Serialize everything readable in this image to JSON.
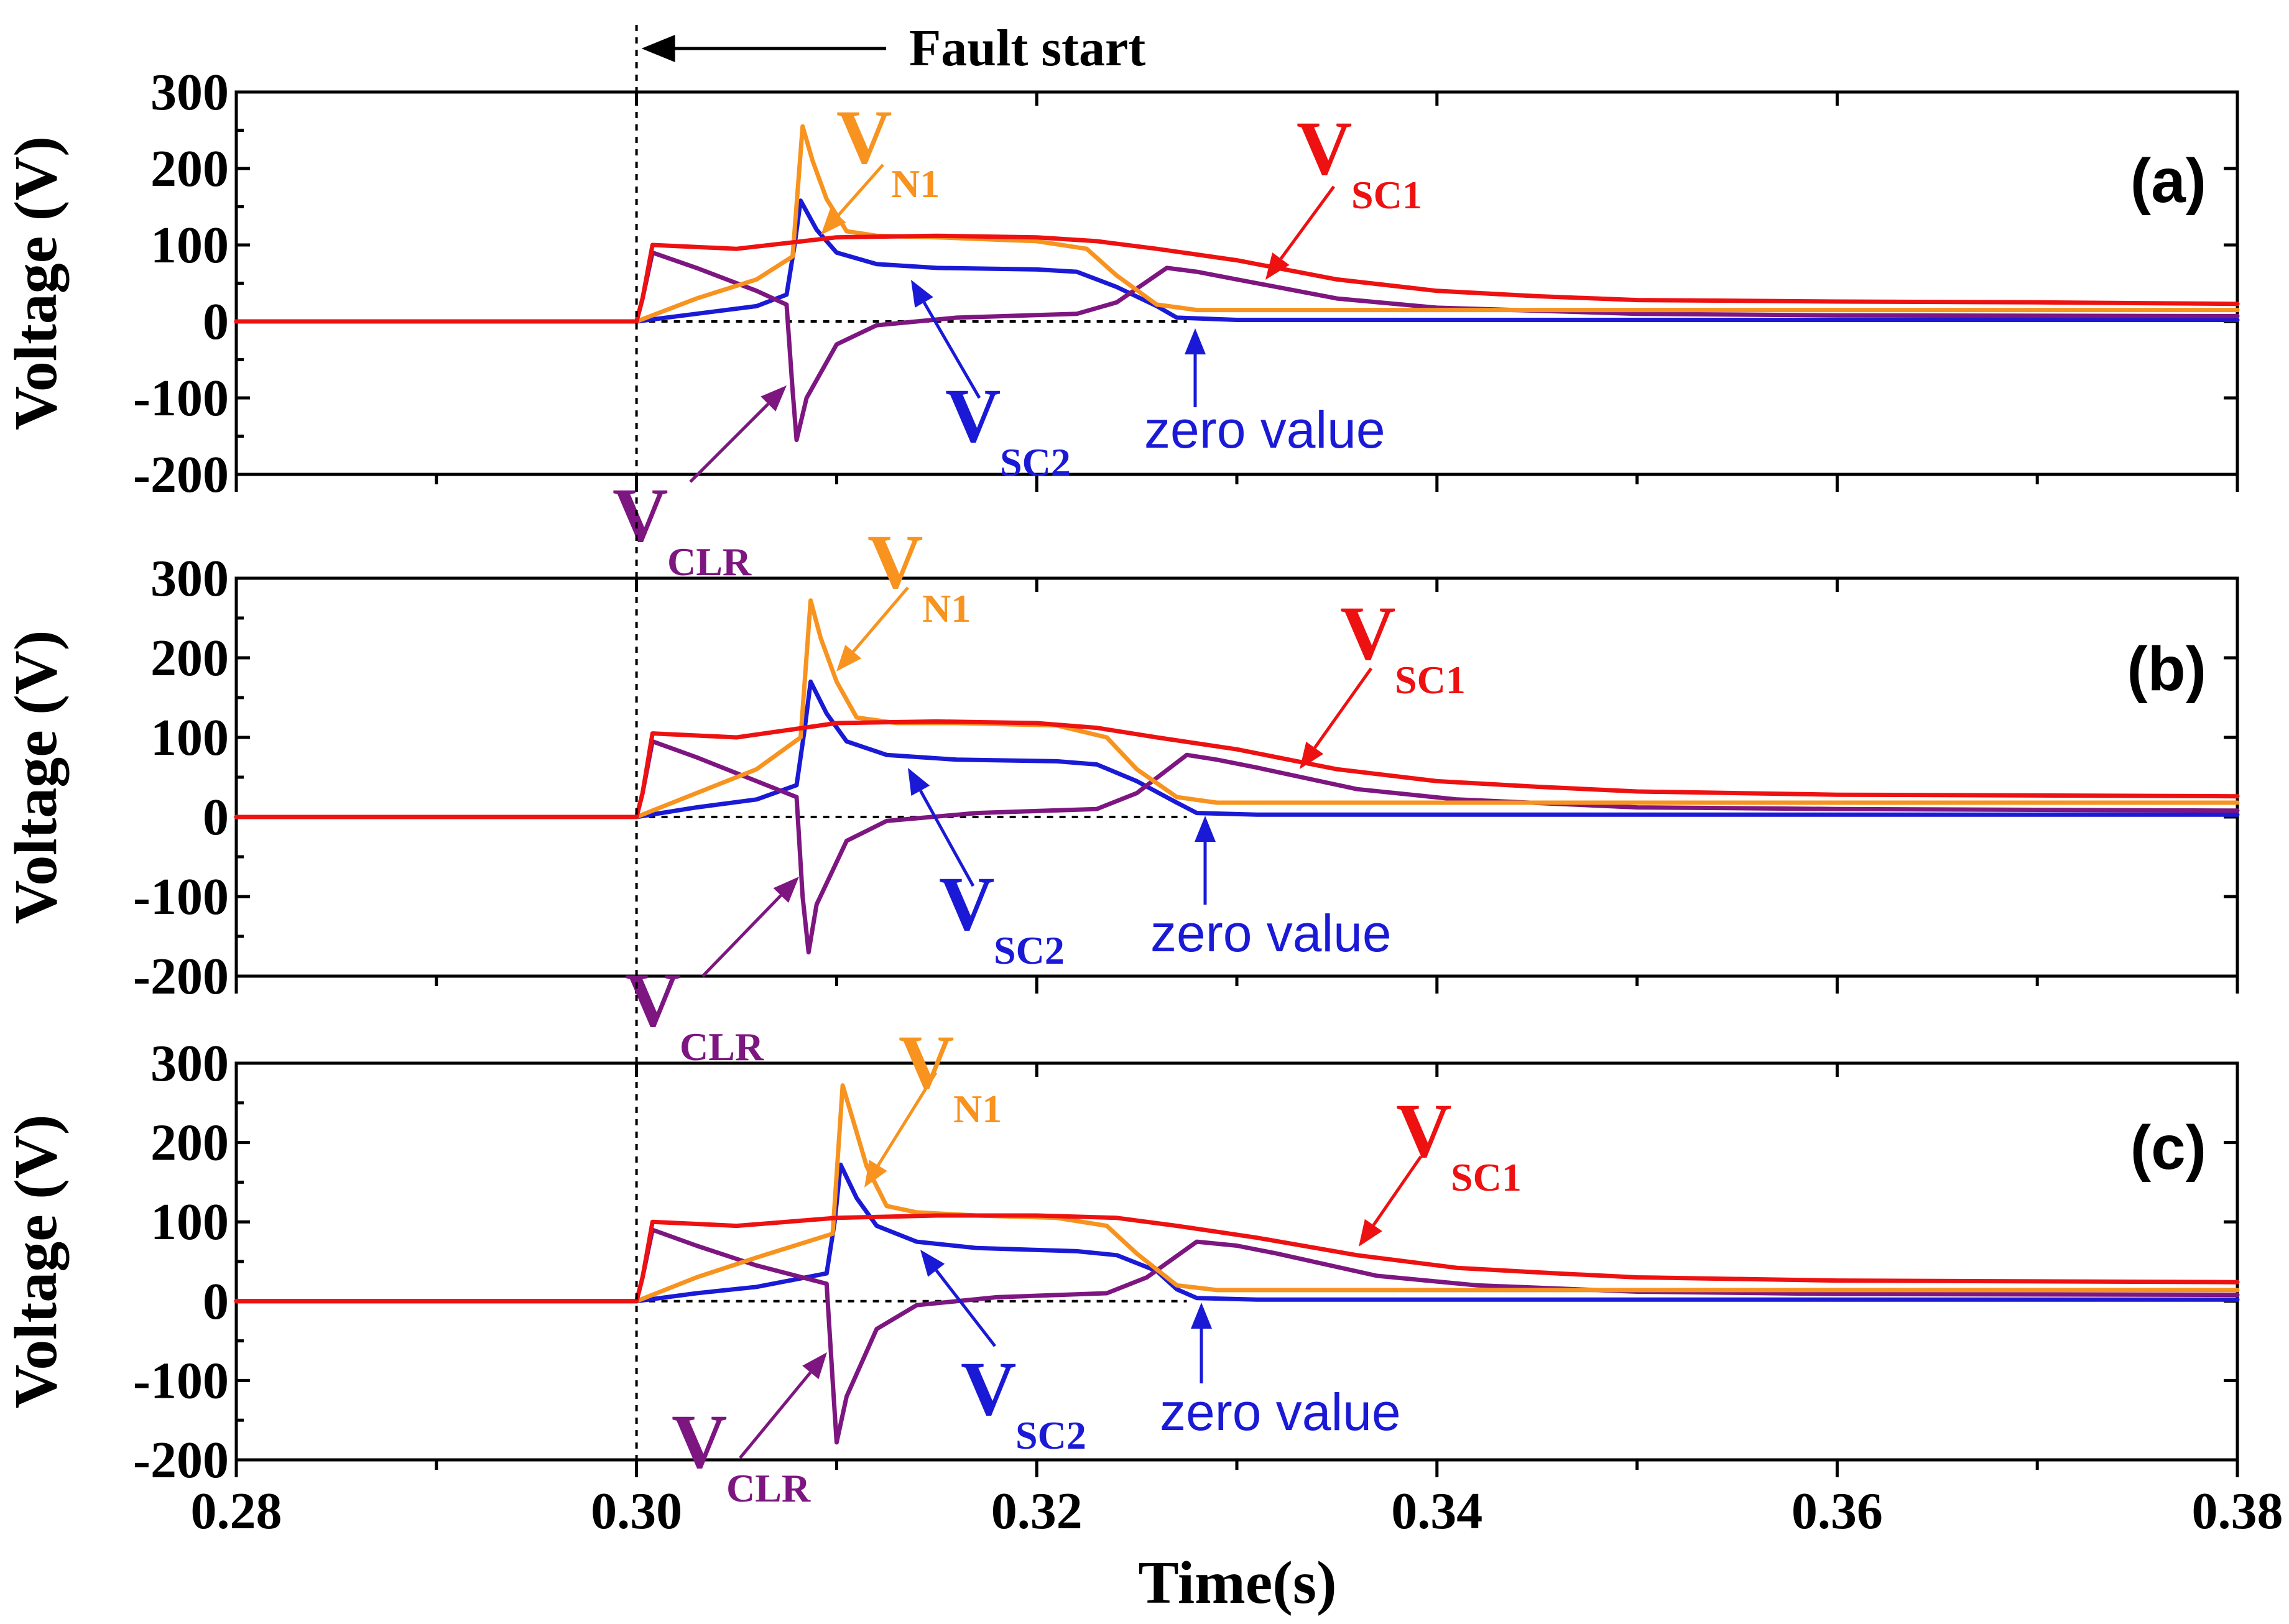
{
  "chart_data": {
    "type": "line",
    "xlabel": "Time(s)",
    "ylabel": "Voltage (V)",
    "xlim": [
      0.28,
      0.38
    ],
    "ylim": [
      -200,
      300
    ],
    "xticks": [
      "0.28",
      "0.30",
      "0.32",
      "0.34",
      "0.36",
      "0.38"
    ],
    "yticks": [
      "-200",
      "-100",
      "0",
      "100",
      "200",
      "300"
    ],
    "fault_label": "Fault start",
    "fault_time": 0.3,
    "zero_label": "zero value",
    "colors": {
      "VSC1": "#ee1111",
      "VN1": "#f7931e",
      "VSC2": "#1a1ad6",
      "VCLR": "#7d1680"
    },
    "series_labels": {
      "VSC1": {
        "main": "V",
        "sub": "SC1"
      },
      "VN1": {
        "main": "V",
        "sub": "N1"
      },
      "VSC2": {
        "main": "V",
        "sub": "SC2"
      },
      "VCLR": {
        "main": "V",
        "sub": "CLR"
      }
    },
    "panels": [
      {
        "label": "(a)",
        "series": [
          {
            "name": "VSC1",
            "x": [
              0.28,
              0.3,
              0.3003,
              0.3008,
              0.305,
              0.31,
              0.315,
              0.32,
              0.323,
              0.326,
              0.33,
              0.335,
              0.34,
              0.345,
              0.35,
              0.36,
              0.37,
              0.38
            ],
            "y": [
              0,
              0,
              30,
              100,
              95,
              110,
              112,
              110,
              105,
              95,
              80,
              55,
              40,
              33,
              28,
              26,
              25,
              23
            ]
          },
          {
            "name": "VN1",
            "x": [
              0.28,
              0.3,
              0.303,
              0.306,
              0.3078,
              0.3083,
              0.3088,
              0.3095,
              0.3105,
              0.312,
              0.315,
              0.32,
              0.3225,
              0.324,
              0.326,
              0.328,
              0.335,
              0.35,
              0.38
            ],
            "y": [
              0,
              0,
              30,
              55,
              85,
              255,
              210,
              160,
              118,
              112,
              110,
              105,
              95,
              60,
              22,
              15,
              15,
              15,
              15
            ]
          },
          {
            "name": "VSC2",
            "x": [
              0.28,
              0.3,
              0.303,
              0.306,
              0.3075,
              0.3079,
              0.3082,
              0.309,
              0.31,
              0.312,
              0.315,
              0.32,
              0.322,
              0.324,
              0.326,
              0.327,
              0.33,
              0.34,
              0.38
            ],
            "y": [
              0,
              0,
              10,
              20,
              35,
              100,
              158,
              120,
              90,
              75,
              70,
              68,
              65,
              45,
              20,
              5,
              2,
              2,
              2
            ]
          },
          {
            "name": "VCLR",
            "x": [
              0.28,
              0.3,
              0.3003,
              0.3008,
              0.303,
              0.306,
              0.3075,
              0.3078,
              0.308,
              0.3085,
              0.31,
              0.312,
              0.316,
              0.322,
              0.324,
              0.3265,
              0.328,
              0.33,
              0.335,
              0.34,
              0.35,
              0.36,
              0.38
            ],
            "y": [
              0,
              0,
              30,
              90,
              70,
              40,
              22,
              -90,
              -155,
              -100,
              -30,
              -5,
              5,
              10,
              25,
              70,
              65,
              55,
              30,
              18,
              10,
              8,
              7
            ]
          }
        ]
      },
      {
        "label": "(b)",
        "series": [
          {
            "name": "VSC1",
            "x": [
              0.28,
              0.3,
              0.3003,
              0.3008,
              0.305,
              0.31,
              0.315,
              0.32,
              0.323,
              0.326,
              0.33,
              0.335,
              0.34,
              0.345,
              0.35,
              0.36,
              0.37,
              0.38
            ],
            "y": [
              0,
              0,
              30,
              105,
              100,
              118,
              120,
              118,
              112,
              100,
              85,
              60,
              45,
              38,
              32,
              28,
              27,
              26
            ]
          },
          {
            "name": "VN1",
            "x": [
              0.28,
              0.3,
              0.303,
              0.306,
              0.3082,
              0.3087,
              0.3092,
              0.31,
              0.311,
              0.313,
              0.316,
              0.321,
              0.3235,
              0.325,
              0.327,
              0.329,
              0.336,
              0.35,
              0.38
            ],
            "y": [
              0,
              0,
              30,
              60,
              100,
              272,
              225,
              170,
              125,
              118,
              118,
              115,
              100,
              60,
              25,
              18,
              18,
              18,
              18
            ]
          },
          {
            "name": "VSC2",
            "x": [
              0.28,
              0.3,
              0.303,
              0.306,
              0.308,
              0.3084,
              0.3087,
              0.3095,
              0.3105,
              0.3125,
              0.316,
              0.321,
              0.323,
              0.325,
              0.327,
              0.328,
              0.331,
              0.34,
              0.38
            ],
            "y": [
              0,
              0,
              12,
              22,
              40,
              110,
              170,
              130,
              95,
              78,
              72,
              70,
              66,
              45,
              18,
              5,
              3,
              3,
              3
            ]
          },
          {
            "name": "VCLR",
            "x": [
              0.28,
              0.3,
              0.3003,
              0.3008,
              0.303,
              0.306,
              0.308,
              0.3083,
              0.3086,
              0.309,
              0.3105,
              0.3125,
              0.317,
              0.323,
              0.325,
              0.3275,
              0.329,
              0.331,
              0.336,
              0.341,
              0.35,
              0.36,
              0.38
            ],
            "y": [
              0,
              0,
              30,
              95,
              75,
              45,
              25,
              -100,
              -170,
              -110,
              -30,
              -5,
              5,
              10,
              30,
              78,
              72,
              62,
              35,
              22,
              12,
              10,
              8
            ]
          }
        ]
      },
      {
        "label": "(c)",
        "series": [
          {
            "name": "VSC1",
            "x": [
              0.28,
              0.3,
              0.3003,
              0.3008,
              0.305,
              0.31,
              0.315,
              0.32,
              0.324,
              0.327,
              0.331,
              0.336,
              0.341,
              0.346,
              0.35,
              0.36,
              0.37,
              0.38
            ],
            "y": [
              0,
              0,
              30,
              100,
              95,
              105,
              108,
              108,
              105,
              95,
              80,
              58,
              42,
              35,
              30,
              26,
              25,
              24
            ]
          },
          {
            "name": "VN1",
            "x": [
              0.28,
              0.3,
              0.303,
              0.306,
              0.3098,
              0.3103,
              0.3108,
              0.3115,
              0.3125,
              0.314,
              0.317,
              0.321,
              0.3235,
              0.325,
              0.327,
              0.329,
              0.336,
              0.35,
              0.38
            ],
            "y": [
              0,
              0,
              30,
              55,
              85,
              272,
              230,
              170,
              120,
              112,
              108,
              105,
              95,
              60,
              20,
              14,
              14,
              14,
              14
            ]
          },
          {
            "name": "VSC2",
            "x": [
              0.28,
              0.3,
              0.303,
              0.306,
              0.3095,
              0.3099,
              0.3102,
              0.311,
              0.312,
              0.314,
              0.317,
              0.322,
              0.324,
              0.326,
              0.327,
              0.328,
              0.331,
              0.34,
              0.38
            ],
            "y": [
              0,
              0,
              10,
              18,
              35,
              100,
              172,
              130,
              95,
              75,
              67,
              63,
              58,
              38,
              15,
              4,
              2,
              2,
              2
            ]
          },
          {
            "name": "VCLR",
            "x": [
              0.28,
              0.3,
              0.3003,
              0.3008,
              0.303,
              0.306,
              0.3095,
              0.3098,
              0.31,
              0.3105,
              0.312,
              0.314,
              0.318,
              0.3235,
              0.3255,
              0.328,
              0.33,
              0.332,
              0.337,
              0.342,
              0.35,
              0.36,
              0.38
            ],
            "y": [
              0,
              0,
              30,
              90,
              70,
              45,
              22,
              -100,
              -178,
              -120,
              -35,
              -5,
              5,
              10,
              30,
              75,
              70,
              60,
              32,
              20,
              12,
              9,
              8
            ]
          }
        ]
      }
    ]
  }
}
